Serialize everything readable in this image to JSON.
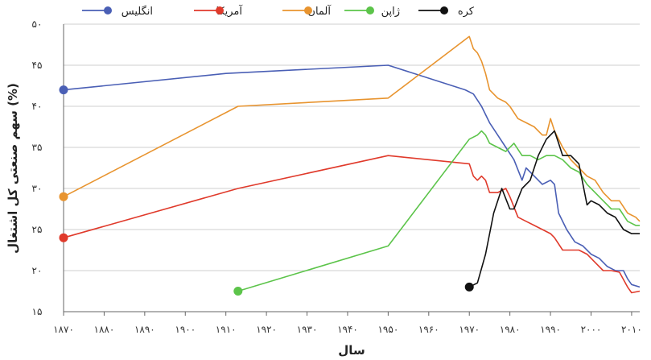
{
  "chart_data": {
    "type": "line",
    "xlabel": "سال",
    "ylabel": "سهم صنعتی کل اشتغال (%)",
    "xlim": [
      1870,
      2012
    ],
    "ylim": [
      15,
      50
    ],
    "x_ticks": [
      1870,
      1880,
      1890,
      1900,
      1910,
      1920,
      1930,
      1940,
      1950,
      1960,
      1970,
      1980,
      1990,
      2000,
      2010
    ],
    "x_tick_labels": [
      "۱۸۷۰",
      "۱۸۸۰",
      "۱۸۹۰",
      "۱۹۰۰",
      "۱۹۱۰",
      "۱۹۲۰",
      "۱۹۳۰",
      "۱۹۴۰",
      "۱۹۵۰",
      "۱۹۶۰",
      "۱۹۷۰",
      "۱۹۸۰",
      "۱۹۹۰",
      "۲۰۰۰",
      "۲۰۱۰"
    ],
    "y_ticks": [
      15,
      20,
      25,
      30,
      35,
      40,
      45,
      50
    ],
    "y_tick_labels": [
      "۱۵",
      "۲۰",
      "۲۵",
      "۳۰",
      "۳۵",
      "۴۰",
      "۴۵",
      "۵۰"
    ],
    "grid": "horizontal",
    "legend_position": "top",
    "series": [
      {
        "name": "انگلیس",
        "color": "#4a5fb5",
        "points": [
          [
            1870,
            42
          ],
          [
            1910,
            44
          ],
          [
            1950,
            45
          ],
          [
            1969,
            42
          ],
          [
            1971,
            41.5
          ],
          [
            1973,
            40
          ],
          [
            1975,
            38
          ],
          [
            1977,
            36.5
          ],
          [
            1979,
            35
          ],
          [
            1981,
            33.5
          ],
          [
            1983,
            31
          ],
          [
            1984,
            32.5
          ],
          [
            1986,
            31.5
          ],
          [
            1988,
            30.5
          ],
          [
            1990,
            31
          ],
          [
            1991,
            30.5
          ],
          [
            1992,
            27
          ],
          [
            1994,
            25
          ],
          [
            1996,
            23.5
          ],
          [
            1998,
            23
          ],
          [
            2000,
            22
          ],
          [
            2002,
            21.5
          ],
          [
            2004,
            20.5
          ],
          [
            2006,
            20
          ],
          [
            2008,
            20
          ],
          [
            2009,
            19
          ],
          [
            2010,
            18.3
          ],
          [
            2012,
            18
          ]
        ]
      },
      {
        "name": "آمریکا",
        "color": "#e03a2b",
        "points": [
          [
            1870,
            24
          ],
          [
            1913,
            30
          ],
          [
            1950,
            34
          ],
          [
            1970,
            33
          ],
          [
            1971,
            31.5
          ],
          [
            1972,
            31
          ],
          [
            1973,
            31.5
          ],
          [
            1974,
            31
          ],
          [
            1975,
            29.5
          ],
          [
            1977,
            29.5
          ],
          [
            1979,
            30
          ],
          [
            1980,
            29
          ],
          [
            1982,
            26.5
          ],
          [
            1984,
            26
          ],
          [
            1986,
            25.5
          ],
          [
            1988,
            25
          ],
          [
            1990,
            24.5
          ],
          [
            1991,
            24
          ],
          [
            1993,
            22.5
          ],
          [
            1995,
            22.5
          ],
          [
            1997,
            22.5
          ],
          [
            1999,
            22
          ],
          [
            2001,
            21
          ],
          [
            2003,
            20
          ],
          [
            2005,
            20
          ],
          [
            2007,
            19.8
          ],
          [
            2009,
            18
          ],
          [
            2010,
            17.3
          ],
          [
            2012,
            17.5
          ]
        ]
      },
      {
        "name": "آلمان",
        "color": "#e8942f",
        "points": [
          [
            1870,
            29
          ],
          [
            1913,
            40
          ],
          [
            1950,
            41
          ],
          [
            1970,
            48.5
          ],
          [
            1971,
            47
          ],
          [
            1972,
            46.5
          ],
          [
            1973,
            45.5
          ],
          [
            1974,
            44
          ],
          [
            1975,
            42
          ],
          [
            1977,
            41
          ],
          [
            1979,
            40.5
          ],
          [
            1980,
            40
          ],
          [
            1982,
            38.5
          ],
          [
            1984,
            38
          ],
          [
            1986,
            37.5
          ],
          [
            1988,
            36.5
          ],
          [
            1989,
            36.5
          ],
          [
            1990,
            38.5
          ],
          [
            1991,
            37
          ],
          [
            1993,
            35
          ],
          [
            1995,
            33.5
          ],
          [
            1997,
            32.5
          ],
          [
            1999,
            31.5
          ],
          [
            2001,
            31
          ],
          [
            2003,
            29.5
          ],
          [
            2005,
            28.5
          ],
          [
            2007,
            28.5
          ],
          [
            2009,
            27
          ],
          [
            2011,
            26.5
          ],
          [
            2012,
            26
          ]
        ]
      },
      {
        "name": "ژاپن",
        "color": "#5cc44a",
        "points": [
          [
            1913,
            17.5
          ],
          [
            1950,
            23
          ],
          [
            1970,
            36
          ],
          [
            1972,
            36.5
          ],
          [
            1973,
            37
          ],
          [
            1974,
            36.5
          ],
          [
            1975,
            35.5
          ],
          [
            1977,
            35
          ],
          [
            1979,
            34.5
          ],
          [
            1981,
            35.5
          ],
          [
            1983,
            34
          ],
          [
            1985,
            34
          ],
          [
            1987,
            33.5
          ],
          [
            1989,
            34
          ],
          [
            1991,
            34
          ],
          [
            1993,
            33.5
          ],
          [
            1995,
            32.5
          ],
          [
            1997,
            32
          ],
          [
            1999,
            30.5
          ],
          [
            2001,
            29.5
          ],
          [
            2003,
            28.5
          ],
          [
            2005,
            27.5
          ],
          [
            2007,
            27.5
          ],
          [
            2009,
            26
          ],
          [
            2011,
            25.5
          ],
          [
            2012,
            25.5
          ]
        ]
      },
      {
        "name": "کره",
        "color": "#111111",
        "points": [
          [
            1970,
            18
          ],
          [
            1972,
            18.5
          ],
          [
            1974,
            22
          ],
          [
            1976,
            27
          ],
          [
            1978,
            30
          ],
          [
            1980,
            27.5
          ],
          [
            1981,
            27.5
          ],
          [
            1983,
            30
          ],
          [
            1985,
            31
          ],
          [
            1987,
            34
          ],
          [
            1989,
            36
          ],
          [
            1991,
            37
          ],
          [
            1992,
            35.5
          ],
          [
            1993,
            34
          ],
          [
            1995,
            34
          ],
          [
            1997,
            33
          ],
          [
            1999,
            28
          ],
          [
            2000,
            28.5
          ],
          [
            2002,
            28
          ],
          [
            2004,
            27
          ],
          [
            2006,
            26.5
          ],
          [
            2008,
            25
          ],
          [
            2010,
            24.5
          ],
          [
            2012,
            24.5
          ]
        ]
      }
    ]
  }
}
